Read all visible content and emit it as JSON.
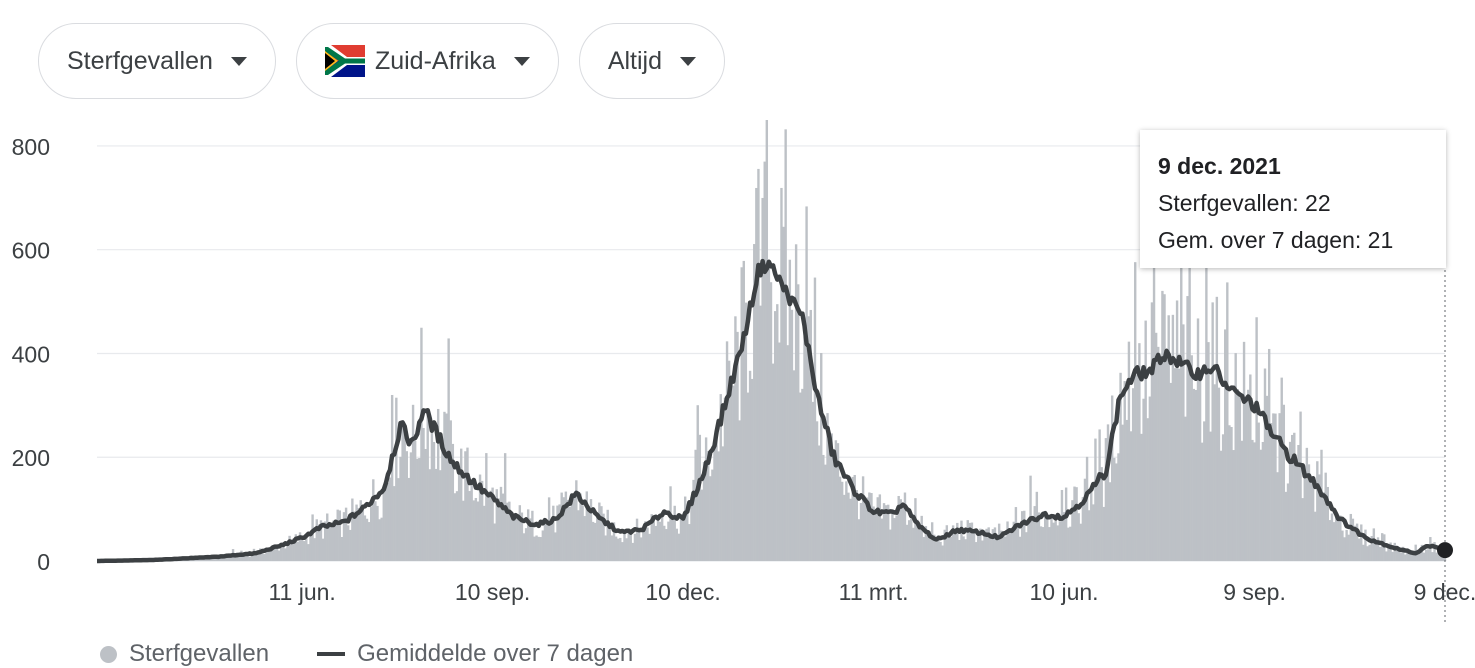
{
  "filters": {
    "metric": "Sterfgevallen",
    "region": "Zuid-Afrika",
    "period": "Altijd"
  },
  "tooltip": {
    "date": "9 dec. 2021",
    "deaths": "Sterfgevallen: 22",
    "avg": "Gem. over 7 dagen: 21"
  },
  "legend": {
    "bars": "Sterfgevallen",
    "line": "Gemiddelde over 7 dagen"
  },
  "colors": {
    "bars": "#bdc1c6",
    "line": "#3c4043",
    "grid": "#e8eaed"
  },
  "chart_data": {
    "type": "bar",
    "ylim": [
      0,
      850
    ],
    "yticks": [
      0,
      200,
      400,
      600,
      800
    ],
    "xticks": [
      "11 jun.",
      "10 sep.",
      "10 dec.",
      "11 mrt.",
      "10 jun.",
      "9 sep.",
      "9 dec."
    ],
    "x_range": [
      "2020-03-05",
      "2021-12-09"
    ],
    "xtick_dates": [
      "2020-06-11",
      "2020-09-10",
      "2020-12-10",
      "2021-03-11",
      "2021-06-10",
      "2021-09-09",
      "2021-12-09"
    ],
    "grid": true,
    "series": [
      {
        "name": "Gemiddelde over 7 dagen",
        "points": [
          [
            "2020-03-05",
            0
          ],
          [
            "2020-04-01",
            2
          ],
          [
            "2020-05-01",
            8
          ],
          [
            "2020-05-20",
            15
          ],
          [
            "2020-06-01",
            30
          ],
          [
            "2020-06-11",
            45
          ],
          [
            "2020-06-20",
            65
          ],
          [
            "2020-07-01",
            75
          ],
          [
            "2020-07-10",
            100
          ],
          [
            "2020-07-20",
            140
          ],
          [
            "2020-07-28",
            260
          ],
          [
            "2020-08-03",
            225
          ],
          [
            "2020-08-08",
            295
          ],
          [
            "2020-08-15",
            240
          ],
          [
            "2020-08-22",
            190
          ],
          [
            "2020-09-01",
            150
          ],
          [
            "2020-09-10",
            120
          ],
          [
            "2020-09-20",
            85
          ],
          [
            "2020-10-01",
            70
          ],
          [
            "2020-10-10",
            80
          ],
          [
            "2020-10-20",
            130
          ],
          [
            "2020-10-30",
            85
          ],
          [
            "2020-11-10",
            55
          ],
          [
            "2020-11-20",
            60
          ],
          [
            "2020-12-01",
            95
          ],
          [
            "2020-12-10",
            80
          ],
          [
            "2020-12-20",
            170
          ],
          [
            "2020-12-30",
            300
          ],
          [
            "2021-01-08",
            430
          ],
          [
            "2021-01-15",
            560
          ],
          [
            "2021-01-20",
            575
          ],
          [
            "2021-01-28",
            520
          ],
          [
            "2021-02-05",
            470
          ],
          [
            "2021-02-12",
            320
          ],
          [
            "2021-02-20",
            200
          ],
          [
            "2021-03-01",
            140
          ],
          [
            "2021-03-11",
            95
          ],
          [
            "2021-03-20",
            90
          ],
          [
            "2021-03-25",
            110
          ],
          [
            "2021-04-01",
            70
          ],
          [
            "2021-04-10",
            40
          ],
          [
            "2021-04-20",
            60
          ],
          [
            "2021-05-01",
            55
          ],
          [
            "2021-05-10",
            45
          ],
          [
            "2021-05-20",
            70
          ],
          [
            "2021-06-01",
            90
          ],
          [
            "2021-06-10",
            85
          ],
          [
            "2021-06-20",
            120
          ],
          [
            "2021-06-30",
            175
          ],
          [
            "2021-07-07",
            320
          ],
          [
            "2021-07-14",
            360
          ],
          [
            "2021-07-21",
            365
          ],
          [
            "2021-07-28",
            400
          ],
          [
            "2021-08-05",
            380
          ],
          [
            "2021-08-12",
            360
          ],
          [
            "2021-08-20",
            375
          ],
          [
            "2021-08-28",
            330
          ],
          [
            "2021-09-09",
            300
          ],
          [
            "2021-09-20",
            230
          ],
          [
            "2021-10-01",
            180
          ],
          [
            "2021-10-10",
            140
          ],
          [
            "2021-10-20",
            80
          ],
          [
            "2021-11-01",
            45
          ],
          [
            "2021-11-15",
            25
          ],
          [
            "2021-11-25",
            15
          ],
          [
            "2021-12-01",
            30
          ],
          [
            "2021-12-09",
            21
          ]
        ]
      }
    ]
  }
}
